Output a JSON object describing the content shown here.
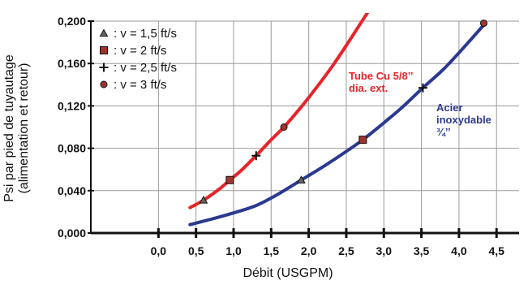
{
  "chart_data": {
    "type": "line",
    "xlabel": "Débit (USGPM)",
    "ylabel_line1": "Psi  par pied de tuyautage",
    "ylabel_line2": "(alimentation et retour)",
    "xlim": [
      -0.9,
      4.8
    ],
    "ylim": [
      0,
      0.2
    ],
    "x_ticks": [
      0.0,
      0.5,
      1.0,
      1.5,
      2.0,
      2.5,
      3.0,
      3.5,
      4.0,
      4.5
    ],
    "x_tick_labels": [
      "0,0",
      "0,5",
      "1,0",
      "1,5",
      "2,0",
      "2,5",
      "3,0",
      "3,5",
      "4,0",
      "4,5"
    ],
    "y_ticks": [
      0,
      0.04,
      0.08,
      0.12,
      0.16,
      0.2
    ],
    "y_tick_labels": [
      "0,000",
      "0,040",
      "0,080",
      "0,120",
      "0,160",
      "0,200"
    ],
    "grid": true,
    "legend_position": "top-left",
    "legend": [
      {
        "marker": "triangle",
        "label": ": v = 1,5 ft/s"
      },
      {
        "marker": "square",
        "label": ": v = 2 ft/s"
      },
      {
        "marker": "plus",
        "label": ": v = 2,5 ft/s"
      },
      {
        "marker": "circle",
        "label": ": v = 3 ft/s"
      }
    ],
    "series": [
      {
        "color": "#e8232a",
        "annotation": [
          "Tube Cu 5/8’’",
          "dia. ext."
        ],
        "x": [
          0.42,
          0.6,
          0.8,
          0.95,
          1.1,
          1.3,
          1.5,
          1.67,
          1.9,
          2.1,
          2.3,
          2.5,
          2.7,
          2.82
        ],
        "y": [
          0.024,
          0.031,
          0.041,
          0.05,
          0.059,
          0.073,
          0.088,
          0.1,
          0.119,
          0.137,
          0.156,
          0.177,
          0.199,
          0.212
        ]
      },
      {
        "color": "#2b3990",
        "annotation": [
          "Acier",
          "inoxydable",
          "¾’’"
        ],
        "x": [
          0.42,
          0.7,
          1.0,
          1.3,
          1.6,
          1.9,
          2.2,
          2.5,
          2.72,
          3.0,
          3.25,
          3.52,
          3.8,
          4.1,
          4.35
        ],
        "y": [
          0.008,
          0.013,
          0.019,
          0.026,
          0.037,
          0.05,
          0.063,
          0.077,
          0.088,
          0.104,
          0.119,
          0.137,
          0.155,
          0.178,
          0.198
        ]
      }
    ],
    "points": [
      {
        "series": 0,
        "marker": "triangle",
        "x": 0.6,
        "y": 0.031
      },
      {
        "series": 0,
        "marker": "square",
        "x": 0.95,
        "y": 0.05
      },
      {
        "series": 0,
        "marker": "plus",
        "x": 1.3,
        "y": 0.073
      },
      {
        "series": 0,
        "marker": "circle",
        "x": 1.67,
        "y": 0.1
      },
      {
        "series": 1,
        "marker": "triangle",
        "x": 1.9,
        "y": 0.05
      },
      {
        "series": 1,
        "marker": "square",
        "x": 2.72,
        "y": 0.088
      },
      {
        "series": 1,
        "marker": "plus",
        "x": 3.52,
        "y": 0.137
      },
      {
        "series": 1,
        "marker": "circle",
        "x": 4.33,
        "y": 0.198
      }
    ]
  }
}
